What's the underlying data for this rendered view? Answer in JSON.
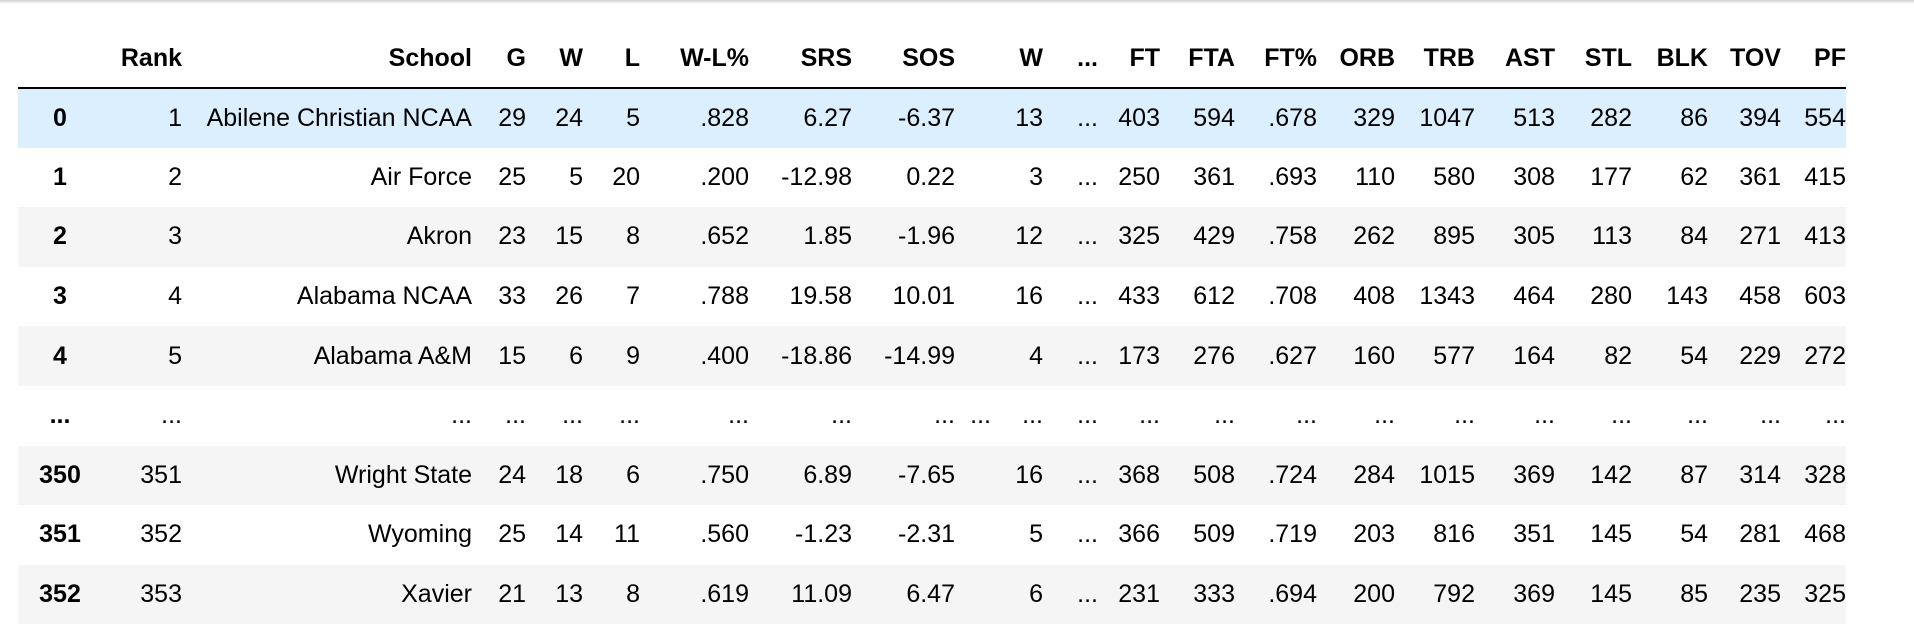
{
  "table": {
    "columns": [
      "",
      "Rank",
      "School",
      "G",
      "W",
      "L",
      "W-L%",
      "SRS",
      "SOS",
      "",
      "W",
      "...",
      "FT",
      "FTA",
      "FT%",
      "ORB",
      "TRB",
      "AST",
      "STL",
      "BLK",
      "TOV",
      "PF"
    ],
    "rows": [
      {
        "index": "0",
        "cells": [
          "1",
          "Abilene Christian NCAA",
          "29",
          "24",
          "5",
          ".828",
          "6.27",
          "-6.37",
          "",
          "13",
          "...",
          "403",
          "594",
          ".678",
          "329",
          "1047",
          "513",
          "282",
          "86",
          "394",
          "554"
        ]
      },
      {
        "index": "1",
        "cells": [
          "2",
          "Air Force",
          "25",
          "5",
          "20",
          ".200",
          "-12.98",
          "0.22",
          "",
          "3",
          "...",
          "250",
          "361",
          ".693",
          "110",
          "580",
          "308",
          "177",
          "62",
          "361",
          "415"
        ]
      },
      {
        "index": "2",
        "cells": [
          "3",
          "Akron",
          "23",
          "15",
          "8",
          ".652",
          "1.85",
          "-1.96",
          "",
          "12",
          "...",
          "325",
          "429",
          ".758",
          "262",
          "895",
          "305",
          "113",
          "84",
          "271",
          "413"
        ]
      },
      {
        "index": "3",
        "cells": [
          "4",
          "Alabama NCAA",
          "33",
          "26",
          "7",
          ".788",
          "19.58",
          "10.01",
          "",
          "16",
          "...",
          "433",
          "612",
          ".708",
          "408",
          "1343",
          "464",
          "280",
          "143",
          "458",
          "603"
        ]
      },
      {
        "index": "4",
        "cells": [
          "5",
          "Alabama A&M",
          "15",
          "6",
          "9",
          ".400",
          "-18.86",
          "-14.99",
          "",
          "4",
          "...",
          "173",
          "276",
          ".627",
          "160",
          "577",
          "164",
          "82",
          "54",
          "229",
          "272"
        ]
      },
      {
        "index": "...",
        "cells": [
          "...",
          "...",
          "...",
          "...",
          "...",
          "...",
          "...",
          "...",
          "...",
          "...",
          "...",
          "...",
          "...",
          "...",
          "...",
          "...",
          "...",
          "...",
          "...",
          "...",
          "..."
        ]
      },
      {
        "index": "350",
        "cells": [
          "351",
          "Wright State",
          "24",
          "18",
          "6",
          ".750",
          "6.89",
          "-7.65",
          "",
          "16",
          "...",
          "368",
          "508",
          ".724",
          "284",
          "1015",
          "369",
          "142",
          "87",
          "314",
          "328"
        ]
      },
      {
        "index": "351",
        "cells": [
          "352",
          "Wyoming",
          "25",
          "14",
          "11",
          ".560",
          "-1.23",
          "-2.31",
          "",
          "5",
          "...",
          "366",
          "509",
          ".719",
          "203",
          "816",
          "351",
          "145",
          "54",
          "281",
          "468"
        ]
      },
      {
        "index": "352",
        "cells": [
          "353",
          "Xavier",
          "21",
          "13",
          "8",
          ".619",
          "11.09",
          "6.47",
          "",
          "6",
          "...",
          "231",
          "333",
          ".694",
          "200",
          "792",
          "369",
          "145",
          "85",
          "235",
          "325"
        ]
      }
    ]
  },
  "colors": {
    "header_border": "#000000",
    "row_odd": "#f5f5f5",
    "row_even": "#ffffff",
    "row_hover": "#dcefff"
  }
}
